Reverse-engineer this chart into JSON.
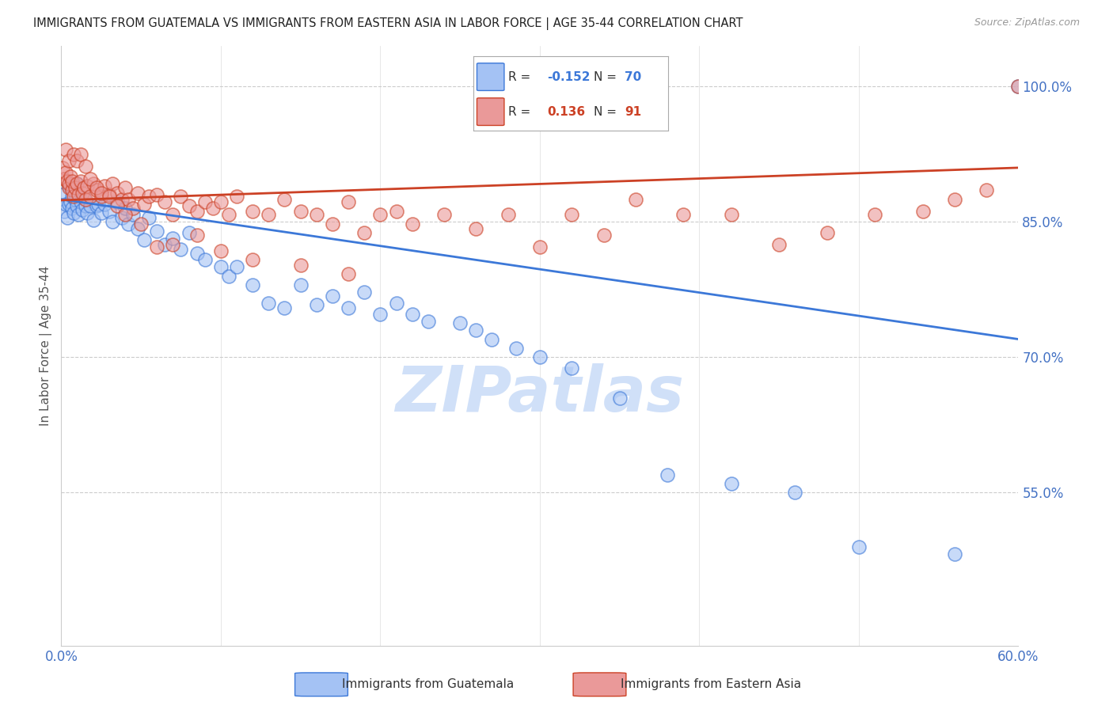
{
  "title": "IMMIGRANTS FROM GUATEMALA VS IMMIGRANTS FROM EASTERN ASIA IN LABOR FORCE | AGE 35-44 CORRELATION CHART",
  "source": "Source: ZipAtlas.com",
  "ylabel": "In Labor Force | Age 35-44",
  "xlim": [
    0.0,
    0.6
  ],
  "ylim": [
    0.38,
    1.045
  ],
  "ytick_right_vals": [
    1.0,
    0.85,
    0.7,
    0.55
  ],
  "ytick_right_labels": [
    "100.0%",
    "85.0%",
    "70.0%",
    "55.0%"
  ],
  "blue_color": "#a4c2f4",
  "pink_color": "#ea9999",
  "blue_line_color": "#3c78d8",
  "pink_line_color": "#cc4125",
  "legend_R_blue": "-0.152",
  "legend_N_blue": "70",
  "legend_R_pink": "0.136",
  "legend_N_pink": "91",
  "watermark": "ZIPatlas",
  "watermark_color": "#d0e0f8",
  "blue_x": [
    0.001,
    0.002,
    0.003,
    0.004,
    0.005,
    0.005,
    0.006,
    0.007,
    0.007,
    0.008,
    0.009,
    0.01,
    0.01,
    0.011,
    0.012,
    0.013,
    0.014,
    0.015,
    0.016,
    0.018,
    0.02,
    0.022,
    0.023,
    0.025,
    0.027,
    0.03,
    0.032,
    0.035,
    0.038,
    0.04,
    0.042,
    0.045,
    0.048,
    0.052,
    0.055,
    0.06,
    0.065,
    0.07,
    0.075,
    0.08,
    0.085,
    0.09,
    0.1,
    0.105,
    0.11,
    0.12,
    0.13,
    0.14,
    0.15,
    0.16,
    0.17,
    0.18,
    0.19,
    0.2,
    0.21,
    0.22,
    0.23,
    0.25,
    0.26,
    0.27,
    0.285,
    0.3,
    0.32,
    0.35,
    0.38,
    0.42,
    0.46,
    0.5,
    0.56,
    0.6
  ],
  "blue_y": [
    0.88,
    0.862,
    0.87,
    0.855,
    0.89,
    0.87,
    0.872,
    0.865,
    0.878,
    0.86,
    0.875,
    0.868,
    0.892,
    0.858,
    0.872,
    0.863,
    0.877,
    0.868,
    0.86,
    0.868,
    0.852,
    0.868,
    0.87,
    0.86,
    0.87,
    0.862,
    0.85,
    0.872,
    0.855,
    0.865,
    0.848,
    0.858,
    0.842,
    0.83,
    0.855,
    0.84,
    0.825,
    0.832,
    0.82,
    0.838,
    0.815,
    0.808,
    0.8,
    0.79,
    0.8,
    0.78,
    0.76,
    0.755,
    0.78,
    0.758,
    0.768,
    0.755,
    0.772,
    0.748,
    0.76,
    0.748,
    0.74,
    0.738,
    0.73,
    0.72,
    0.71,
    0.7,
    0.688,
    0.655,
    0.57,
    0.56,
    0.55,
    0.49,
    0.482,
    1.0
  ],
  "pink_x": [
    0.001,
    0.002,
    0.003,
    0.004,
    0.005,
    0.005,
    0.006,
    0.007,
    0.007,
    0.008,
    0.009,
    0.01,
    0.011,
    0.012,
    0.013,
    0.014,
    0.015,
    0.016,
    0.018,
    0.02,
    0.022,
    0.025,
    0.027,
    0.03,
    0.032,
    0.035,
    0.038,
    0.04,
    0.042,
    0.045,
    0.048,
    0.052,
    0.055,
    0.06,
    0.065,
    0.07,
    0.075,
    0.08,
    0.085,
    0.09,
    0.095,
    0.1,
    0.105,
    0.11,
    0.12,
    0.13,
    0.14,
    0.15,
    0.16,
    0.17,
    0.18,
    0.19,
    0.2,
    0.21,
    0.22,
    0.24,
    0.26,
    0.28,
    0.3,
    0.32,
    0.34,
    0.36,
    0.39,
    0.42,
    0.45,
    0.48,
    0.51,
    0.54,
    0.56,
    0.58,
    0.003,
    0.005,
    0.008,
    0.01,
    0.012,
    0.015,
    0.018,
    0.022,
    0.025,
    0.03,
    0.035,
    0.04,
    0.05,
    0.06,
    0.07,
    0.085,
    0.1,
    0.12,
    0.15,
    0.18,
    0.6
  ],
  "pink_y": [
    0.91,
    0.898,
    0.905,
    0.895,
    0.888,
    0.892,
    0.9,
    0.885,
    0.895,
    0.878,
    0.888,
    0.892,
    0.88,
    0.895,
    0.882,
    0.888,
    0.875,
    0.89,
    0.878,
    0.892,
    0.885,
    0.878,
    0.89,
    0.88,
    0.892,
    0.882,
    0.875,
    0.888,
    0.875,
    0.865,
    0.882,
    0.87,
    0.878,
    0.88,
    0.872,
    0.858,
    0.878,
    0.868,
    0.862,
    0.872,
    0.865,
    0.872,
    0.858,
    0.878,
    0.862,
    0.858,
    0.875,
    0.862,
    0.858,
    0.848,
    0.872,
    0.838,
    0.858,
    0.862,
    0.848,
    0.858,
    0.842,
    0.858,
    0.822,
    0.858,
    0.835,
    0.875,
    0.858,
    0.858,
    0.825,
    0.838,
    0.858,
    0.862,
    0.875,
    0.885,
    0.93,
    0.918,
    0.925,
    0.918,
    0.925,
    0.912,
    0.898,
    0.888,
    0.882,
    0.878,
    0.868,
    0.858,
    0.848,
    0.822,
    0.825,
    0.835,
    0.818,
    0.808,
    0.802,
    0.792,
    1.0
  ]
}
